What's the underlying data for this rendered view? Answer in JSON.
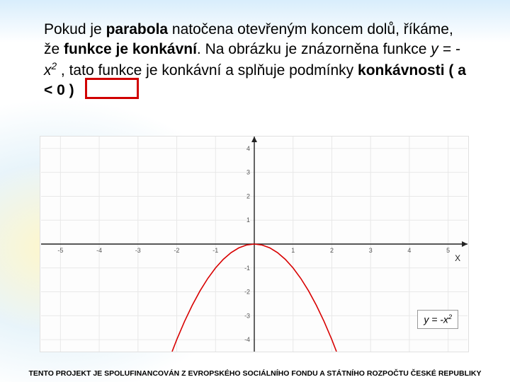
{
  "paragraph": {
    "p1a": "Pokud je ",
    "p1b": "parabola",
    "p1c": " natočena otevřeným koncem dolů, říkáme, že ",
    "p1d": "funkce je konkávní",
    "p1e": ". Na obrázku je znázorněna funkce  ",
    "p1f": "y = -x",
    "p1g": "2",
    "p1h": " , tato funkce je konkávní a splňuje podmínky ",
    "p1i": "konkávnosti ( a < 0 )"
  },
  "chart": {
    "type": "line",
    "function_label_prefix": "y = -x",
    "function_label_exp": "2",
    "x_axis_label": "X",
    "xlim": [
      -5.5,
      5.5
    ],
    "ylim": [
      -4.5,
      4.5
    ],
    "xticks": [
      -5,
      -4,
      -3,
      -2,
      -1,
      1,
      2,
      3,
      4,
      5
    ],
    "yticks": [
      -4,
      -3,
      -2,
      -1,
      1,
      2,
      3,
      4
    ],
    "grid_color": "#e8e8e8",
    "axis_color": "#222222",
    "tick_label_color": "#555555",
    "tick_fontsize": 9,
    "curve_color": "#d80000",
    "curve_width": 1.6,
    "background_color": "#fdfdfd",
    "curve_points": [
      [
        -2.12,
        -4.5
      ],
      [
        -2.0,
        -4.0
      ],
      [
        -1.8,
        -3.24
      ],
      [
        -1.6,
        -2.56
      ],
      [
        -1.4,
        -1.96
      ],
      [
        -1.2,
        -1.44
      ],
      [
        -1.0,
        -1.0
      ],
      [
        -0.8,
        -0.64
      ],
      [
        -0.6,
        -0.36
      ],
      [
        -0.4,
        -0.16
      ],
      [
        -0.2,
        -0.04
      ],
      [
        0,
        0
      ],
      [
        0.2,
        -0.04
      ],
      [
        0.4,
        -0.16
      ],
      [
        0.6,
        -0.36
      ],
      [
        0.8,
        -0.64
      ],
      [
        1.0,
        -1.0
      ],
      [
        1.2,
        -1.44
      ],
      [
        1.4,
        -1.96
      ],
      [
        1.6,
        -2.56
      ],
      [
        1.8,
        -3.24
      ],
      [
        2.0,
        -4.0
      ],
      [
        2.12,
        -4.5
      ]
    ]
  },
  "footer": "TENTO PROJEKT JE SPOLUFINANCOVÁN Z EVROPSKÉHO SOCIÁLNÍHO FONDU A STÁTNÍHO ROZPOČTU ČESKÉ REPUBLIKY"
}
